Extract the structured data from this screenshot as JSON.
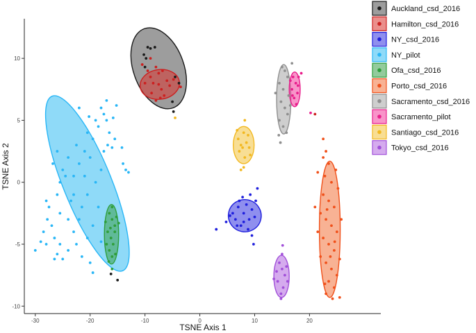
{
  "chart_data": {
    "type": "scatter",
    "title": "",
    "xlabel": "TSNE Axis 1",
    "ylabel": "TSNE Axis 2",
    "xlim": [
      -32,
      33
    ],
    "ylim": [
      -10.6,
      13.2
    ],
    "xticks": [
      -30,
      -20,
      -10,
      0,
      10,
      20
    ],
    "yticks": [
      -10,
      -5,
      0,
      5,
      10
    ],
    "grid": false,
    "legend_position": "right",
    "series": [
      {
        "name": "Auckland_csd_2016",
        "color": "#1a1a1a",
        "ellipse_fill": "#4d4d4d",
        "ellipse": {
          "cx": -7.5,
          "cy": 9.2,
          "rx": 4.6,
          "ry": 3.4,
          "angle": -20
        },
        "points": [
          [
            -9.5,
            10.9
          ],
          [
            -9.0,
            10.8
          ],
          [
            -8.2,
            10.9
          ],
          [
            -10.2,
            10.3
          ],
          [
            -9.8,
            10.0
          ],
          [
            -10.0,
            9.3
          ],
          [
            -4.5,
            8.5
          ],
          [
            -3.8,
            8.0
          ],
          [
            -5.0,
            6.5
          ],
          [
            -4.8,
            5.7
          ],
          [
            -15.0,
            -7.9
          ],
          [
            -16.2,
            -7.4
          ]
        ]
      },
      {
        "name": "Hamilton_csd_2016",
        "color": "#cc2020",
        "ellipse_fill": "#d9332e",
        "ellipse": {
          "cx": -7.3,
          "cy": 7.9,
          "rx": 3.6,
          "ry": 1.2,
          "angle": -8
        },
        "points": [
          [
            -9.5,
            9.0
          ],
          [
            -9.0,
            8.5
          ],
          [
            -8.5,
            8.0
          ],
          [
            -8.0,
            9.3
          ],
          [
            -7.5,
            8.8
          ],
          [
            -7.0,
            7.5
          ],
          [
            -6.5,
            7.0
          ],
          [
            -6.0,
            8.2
          ],
          [
            -5.5,
            7.8
          ],
          [
            -10.0,
            8.0
          ],
          [
            -8.8,
            7.2
          ],
          [
            -7.2,
            6.8
          ],
          [
            -8.0,
            6.6
          ],
          [
            -4.8,
            8.3
          ],
          [
            -10.5,
            9.5
          ],
          [
            -3.5,
            7.7
          ],
          [
            -9.0,
            10.0
          ],
          [
            -6.8,
            9.0
          ],
          [
            -7.5,
            7.9
          ],
          [
            21.0,
            5.5
          ]
        ]
      },
      {
        "name": "NY_csd_2016",
        "color": "#1f1fdd",
        "ellipse_fill": "#3333e0",
        "ellipse": {
          "cx": 8.2,
          "cy": -2.7,
          "rx": 3.0,
          "ry": 1.3,
          "angle": 12
        },
        "points": [
          [
            6.0,
            -2.5
          ],
          [
            6.5,
            -3.0
          ],
          [
            7.0,
            -2.0
          ],
          [
            7.5,
            -3.5
          ],
          [
            8.0,
            -2.5
          ],
          [
            8.5,
            -1.8
          ],
          [
            9.0,
            -3.0
          ],
          [
            9.5,
            -2.2
          ],
          [
            10.0,
            -2.8
          ],
          [
            10.2,
            -1.5
          ],
          [
            7.2,
            -1.5
          ],
          [
            8.8,
            -3.8
          ],
          [
            6.8,
            -3.5
          ],
          [
            5.5,
            -2.7
          ],
          [
            9.2,
            -1.0
          ],
          [
            7.8,
            -1.2
          ],
          [
            4.8,
            -3.2
          ],
          [
            3.0,
            -3.8
          ],
          [
            10.5,
            -0.5
          ],
          [
            9.5,
            -4.3
          ],
          [
            9.8,
            -5.0
          ],
          [
            8.0,
            -3.2
          ]
        ]
      },
      {
        "name": "NY_pilot",
        "color": "#29b6f6",
        "ellipse_fill": "#33bbf2",
        "ellipse": {
          "cx": -20.5,
          "cy": -0.1,
          "rx": 4.4,
          "ry": 7.6,
          "angle": -22
        },
        "points": [
          [
            -30.0,
            -5.5
          ],
          [
            -29.0,
            -4.8
          ],
          [
            -28.5,
            -4.0
          ],
          [
            -28.0,
            -5.0
          ],
          [
            -27.0,
            -3.5
          ],
          [
            -26.5,
            -4.5
          ],
          [
            -26.0,
            -5.8
          ],
          [
            -25.0,
            -6.2
          ],
          [
            -24.0,
            -5.5
          ],
          [
            -23.0,
            -4.0
          ],
          [
            -22.5,
            -5.0
          ],
          [
            -21.5,
            -6.0
          ],
          [
            -20.5,
            -4.5
          ],
          [
            -20.0,
            -6.5
          ],
          [
            -19.5,
            -7.3
          ],
          [
            -27.5,
            -2.0
          ],
          [
            -26.0,
            -1.0
          ],
          [
            -25.5,
            0.0
          ],
          [
            -25.0,
            1.0
          ],
          [
            -24.0,
            2.0
          ],
          [
            -23.5,
            -1.5
          ],
          [
            -23.0,
            0.5
          ],
          [
            -22.0,
            1.5
          ],
          [
            -22.5,
            3.0
          ],
          [
            -21.0,
            2.5
          ],
          [
            -20.5,
            4.0
          ],
          [
            -20.0,
            2.0
          ],
          [
            -19.5,
            3.5
          ],
          [
            -19.0,
            5.0
          ],
          [
            -18.5,
            4.5
          ],
          [
            -18.0,
            6.0
          ],
          [
            -17.5,
            5.5
          ],
          [
            -17.0,
            5.0
          ],
          [
            -16.5,
            4.0
          ],
          [
            -16.0,
            2.8
          ],
          [
            -15.5,
            3.5
          ],
          [
            -14.0,
            1.5
          ],
          [
            -13.5,
            1.0
          ],
          [
            -13.0,
            0.8
          ],
          [
            -14.2,
            2.8
          ],
          [
            -22.0,
            6.0
          ],
          [
            -17.0,
            6.6
          ],
          [
            -15.2,
            6.2
          ],
          [
            -15.8,
            5.2
          ],
          [
            -26.5,
            -6.2
          ],
          [
            -28.0,
            -1.5
          ],
          [
            -26.8,
            1.5
          ],
          [
            -21.5,
            -2.0
          ],
          [
            -20.5,
            -1.0
          ],
          [
            -19.0,
            0.0
          ],
          [
            -18.5,
            -2.0
          ],
          [
            -18.0,
            1.0
          ],
          [
            -22.0,
            -3.0
          ],
          [
            -24.0,
            -3.0
          ],
          [
            -25.5,
            -2.5
          ],
          [
            -19.5,
            -3.5
          ],
          [
            -23.0,
            -1.0
          ],
          [
            -21.0,
            0.5
          ],
          [
            -24.5,
            0.5
          ],
          [
            -17.5,
            2.5
          ],
          [
            -20.2,
            5.3
          ],
          [
            -16.8,
            3.0
          ],
          [
            -27.8,
            -3.0
          ],
          [
            -26.0,
            2.5
          ],
          [
            -18.0,
            -4.8
          ],
          [
            -25.5,
            -5.0
          ]
        ]
      },
      {
        "name": "Ofa_csd_2016",
        "color": "#2e9e3a",
        "ellipse_fill": "#3aa14a",
        "ellipse": {
          "cx": -16.1,
          "cy": -4.2,
          "rx": 1.3,
          "ry": 2.4,
          "angle": 0
        },
        "points": [
          [
            -16.5,
            -2.5
          ],
          [
            -16.0,
            -3.0
          ],
          [
            -15.5,
            -3.5
          ],
          [
            -16.8,
            -4.0
          ],
          [
            -16.2,
            -4.5
          ],
          [
            -15.8,
            -5.0
          ],
          [
            -16.5,
            -5.5
          ],
          [
            -16.0,
            -6.0
          ],
          [
            -15.5,
            -4.0
          ],
          [
            -17.0,
            -5.0
          ],
          [
            -15.2,
            -2.8
          ],
          [
            -16.3,
            -3.7
          ],
          [
            -17.2,
            -3.2
          ],
          [
            -16.0,
            -2.0
          ],
          [
            -15.4,
            -5.8
          ],
          [
            -16.6,
            -6.4
          ],
          [
            -14.8,
            -3.3
          ],
          [
            -16.0,
            -7.0
          ]
        ]
      },
      {
        "name": "Porto_csd_2016",
        "color": "#f0501a",
        "ellipse_fill": "#f2733d",
        "ellipse": {
          "cx": 23.7,
          "cy": -3.8,
          "rx": 1.9,
          "ry": 5.5,
          "angle": 0
        },
        "points": [
          [
            22.5,
            3.5
          ],
          [
            23.0,
            2.5
          ],
          [
            23.5,
            1.5
          ],
          [
            22.8,
            0.5
          ],
          [
            24.0,
            0.0
          ],
          [
            22.5,
            -1.0
          ],
          [
            23.5,
            -1.5
          ],
          [
            24.5,
            -2.0
          ],
          [
            22.0,
            -2.5
          ],
          [
            23.0,
            -3.0
          ],
          [
            24.0,
            -3.5
          ],
          [
            25.0,
            -4.0
          ],
          [
            22.5,
            -4.5
          ],
          [
            23.5,
            -5.0
          ],
          [
            24.5,
            -5.5
          ],
          [
            22.0,
            -6.0
          ],
          [
            23.0,
            -6.5
          ],
          [
            24.0,
            -7.0
          ],
          [
            25.0,
            -7.5
          ],
          [
            23.5,
            -8.0
          ],
          [
            24.5,
            -8.5
          ],
          [
            23.0,
            -9.0
          ],
          [
            25.5,
            -9.3
          ],
          [
            21.5,
            -4.0
          ],
          [
            25.8,
            -3.0
          ],
          [
            25.2,
            -0.5
          ],
          [
            21.0,
            -2.0
          ],
          [
            21.5,
            0.8
          ],
          [
            22.5,
            2.0
          ],
          [
            24.8,
            1.0
          ],
          [
            23.8,
            -6.0
          ],
          [
            24.2,
            -9.4
          ],
          [
            25.5,
            -6.2
          ],
          [
            22.8,
            -8.2
          ],
          [
            23.2,
            -2.2
          ],
          [
            24.6,
            -4.8
          ]
        ]
      },
      {
        "name": "Sacramento_csd_2016",
        "color": "#8f8f8f",
        "ellipse_fill": "#a6a6a6",
        "ellipse": {
          "cx": 15.3,
          "cy": 6.7,
          "rx": 1.3,
          "ry": 2.8,
          "angle": 0
        },
        "points": [
          [
            15.0,
            9.3
          ],
          [
            15.5,
            9.0
          ],
          [
            16.0,
            8.5
          ],
          [
            14.5,
            8.0
          ],
          [
            15.2,
            7.5
          ],
          [
            16.2,
            7.0
          ],
          [
            14.8,
            6.5
          ],
          [
            15.5,
            6.0
          ],
          [
            16.0,
            5.5
          ],
          [
            14.5,
            5.0
          ],
          [
            15.2,
            4.5
          ],
          [
            16.5,
            8.2
          ],
          [
            16.8,
            9.6
          ],
          [
            14.4,
            3.8
          ],
          [
            14.7,
            3.2
          ],
          [
            15.8,
            4.0
          ],
          [
            13.8,
            7.2
          ],
          [
            16.5,
            6.2
          ]
        ]
      },
      {
        "name": "Sacramento_pilot",
        "color": "#e91e8c",
        "ellipse_fill": "#f23d9c",
        "ellipse": {
          "cx": 17.3,
          "cy": 7.5,
          "rx": 1.0,
          "ry": 1.4,
          "angle": 0
        },
        "points": [
          [
            17.0,
            8.5
          ],
          [
            17.5,
            8.0
          ],
          [
            16.8,
            7.5
          ],
          [
            17.8,
            7.2
          ],
          [
            17.2,
            6.8
          ],
          [
            18.0,
            8.5
          ],
          [
            16.5,
            8.2
          ],
          [
            17.6,
            6.3
          ],
          [
            18.5,
            8.8
          ],
          [
            16.9,
            7.0
          ],
          [
            17.9,
            7.8
          ],
          [
            20.2,
            5.6
          ]
        ]
      },
      {
        "name": "Santiago_csd_2016",
        "color": "#f2b820",
        "ellipse_fill": "#f2c23d",
        "ellipse": {
          "cx": 8.0,
          "cy": 3.0,
          "rx": 1.9,
          "ry": 1.5,
          "angle": 0
        },
        "points": [
          [
            7.0,
            3.5
          ],
          [
            7.5,
            3.0
          ],
          [
            8.0,
            4.0
          ],
          [
            8.5,
            3.2
          ],
          [
            9.0,
            2.8
          ],
          [
            7.2,
            2.5
          ],
          [
            8.2,
            2.0
          ],
          [
            8.8,
            3.8
          ],
          [
            7.8,
            2.8
          ],
          [
            8.0,
            1.2
          ],
          [
            7.5,
            1.0
          ],
          [
            8.2,
            5.0
          ],
          [
            9.2,
            2.2
          ],
          [
            6.8,
            4.2
          ],
          [
            -4.5,
            5.2
          ]
        ]
      },
      {
        "name": "Tokyo_csd_2016",
        "color": "#a14fd9",
        "ellipse_fill": "#b266e0",
        "ellipse": {
          "cx": 14.9,
          "cy": -7.6,
          "rx": 1.4,
          "ry": 1.7,
          "angle": 0
        },
        "points": [
          [
            14.5,
            -6.5
          ],
          [
            15.0,
            -7.0
          ],
          [
            15.5,
            -7.5
          ],
          [
            14.2,
            -8.0
          ],
          [
            15.2,
            -8.5
          ],
          [
            14.8,
            -9.0
          ],
          [
            15.8,
            -6.8
          ],
          [
            14.0,
            -7.2
          ],
          [
            16.0,
            -8.0
          ],
          [
            15.0,
            -5.8
          ],
          [
            14.8,
            -9.4
          ],
          [
            13.5,
            -7.8
          ],
          [
            15.1,
            -5.1
          ]
        ]
      }
    ]
  }
}
